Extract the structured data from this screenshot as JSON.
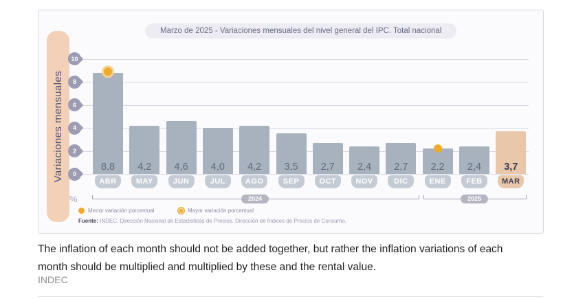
{
  "chart": {
    "title": "Marzo de 2025 - Variaciones mensuales del nivel general del IPC. Total nacional",
    "y_axis_label": "Variaciones mensuales",
    "unit_symbol": "%",
    "legend": [
      {
        "label": "Menor variación porcentual",
        "marker": "solid-dot"
      },
      {
        "label": "Mayor variación porcentual",
        "marker": "ringed-dot"
      }
    ],
    "fuente_bold": "Fuente:",
    "fuente_text": " INDEC, Dirección Nacional de Estadísticas de Precios. Dirección de Índices de Precios de Consumo.",
    "year_groups": [
      {
        "label": "2024",
        "span_months": [
          "ABR",
          "DIC"
        ]
      },
      {
        "label": "2025",
        "span_months": [
          "ENE",
          "MAR"
        ]
      }
    ]
  },
  "chart_data": {
    "type": "bar",
    "title": "Marzo de 2025 - Variaciones mensuales del nivel general del IPC. Total nacional",
    "ylabel": "Variaciones mensuales",
    "xlabel": "",
    "categories": [
      "ABR",
      "MAY",
      "JUN",
      "JUL",
      "AGO",
      "SEP",
      "OCT",
      "NOV",
      "DIC",
      "ENE",
      "FEB",
      "MAR"
    ],
    "values": [
      8.8,
      4.2,
      4.6,
      4.0,
      4.2,
      3.5,
      2.7,
      2.4,
      2.7,
      2.2,
      2.4,
      3.7
    ],
    "value_labels": [
      "8,8",
      "4,2",
      "4,6",
      "4,0",
      "4,2",
      "3,5",
      "2,7",
      "2,4",
      "2,7",
      "2,2",
      "2,4",
      "3,7"
    ],
    "ylim": [
      0,
      10
    ],
    "yticks": [
      0,
      2,
      4,
      6,
      8,
      10
    ],
    "grid": true,
    "legend_position": "bottom-left",
    "highlight_index": 11,
    "max_marker_index": 0,
    "min_marker_index": 9,
    "colors": {
      "bar": "#a8b1be",
      "highlight_bar": "#e9c7aa",
      "month_pill": "#c5cbd4",
      "marker": "#efa92c",
      "band": "#f3d0b8"
    }
  },
  "caption": {
    "text": "The inflation of each month should not be added together, but rather the inflation variations of each month should be multiplied and multiplied by these and the rental value.",
    "source": "INDEC"
  }
}
